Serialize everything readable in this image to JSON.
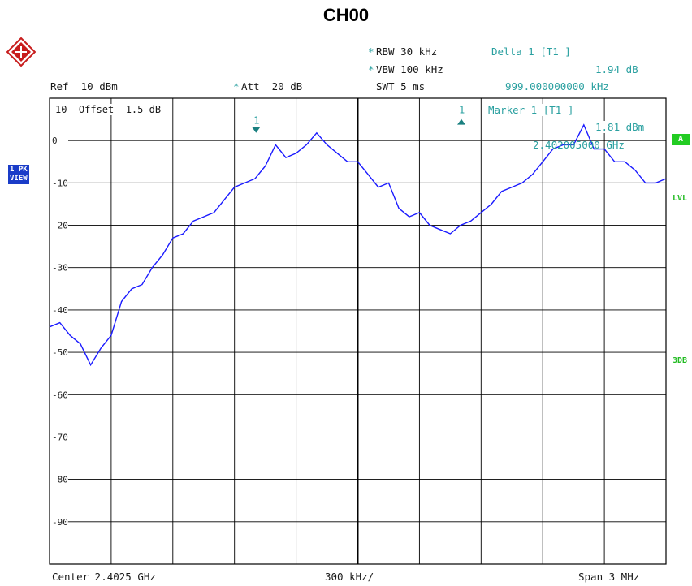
{
  "title": "CH00",
  "header": {
    "rbw": "RBW 30 kHz",
    "vbw": "VBW 100 kHz",
    "swt": "SWT 5 ms",
    "ref": "Ref  10 dBm",
    "att": "Att  20 dB",
    "rbw_star": "*",
    "vbw_star": "*",
    "att_star": "*",
    "delta_label": "Delta 1 [T1 ]",
    "delta_value": "1.94 dB",
    "delta_freq": "999.000000000 kHz",
    "marker_label": "Marker 1 [T1 ]",
    "marker_value": "1.81 dBm",
    "marker_freq": "2.402005000 GHz"
  },
  "offset_label": "10  Offset  1.5 dB",
  "side_tag_line1": "1 PK",
  "side_tag_line2": "VIEW",
  "trace_badge": "A",
  "right_labels": {
    "lvl": "LVL",
    "three_db": "3DB"
  },
  "footer": {
    "center": "Center 2.4025 GHz",
    "per_div": "300 kHz/",
    "span": "Span 3 MHz"
  },
  "colors": {
    "trace": "#1a1aff",
    "marker": "#1a8080",
    "grid": "#000000"
  },
  "chart_data": {
    "type": "line",
    "title": "CH00",
    "xlabel": "",
    "ylabel": "",
    "x_unit": "GHz",
    "y_unit": "dBm",
    "xlim": [
      2.401,
      2.404
    ],
    "ylim": [
      -100,
      10
    ],
    "y_ticks": [
      0,
      -10,
      -20,
      -30,
      -40,
      -50,
      -60,
      -70,
      -80,
      -90
    ],
    "grid": true,
    "series": [
      {
        "x": [
          2.401,
          2.40105,
          2.4011,
          2.40115,
          2.4012,
          2.40125,
          2.4013,
          2.40135,
          2.4014,
          2.40145,
          2.4015,
          2.40155,
          2.4016,
          2.40165,
          2.4017,
          2.40175,
          2.4018,
          2.40185,
          2.4019,
          2.40195,
          2.402,
          2.40205,
          2.4021,
          2.40215,
          2.4022,
          2.40225,
          2.4023,
          2.40235,
          2.4024,
          2.40245,
          2.4025,
          2.40255,
          2.4026,
          2.40265,
          2.4027,
          2.40275,
          2.4028,
          2.40285,
          2.4029,
          2.40295,
          2.403,
          2.40305,
          2.4031,
          2.40315,
          2.4032,
          2.40325,
          2.4033,
          2.40335,
          2.4034,
          2.40345,
          2.4035,
          2.40355,
          2.4036,
          2.40365,
          2.4037,
          2.40375,
          2.4038,
          2.40385,
          2.4039,
          2.40395,
          2.404
        ],
        "y": [
          -44,
          -43,
          -46,
          -48,
          -53,
          -49,
          -46,
          -38,
          -35,
          -34,
          -30,
          -27,
          -23,
          -22,
          -19,
          -18,
          -17,
          -14,
          -11,
          -10,
          -9,
          -6,
          -1,
          -4,
          -3,
          -1,
          1.8,
          -1,
          -3,
          -5,
          -5,
          -8,
          -11,
          -10,
          -16,
          -18,
          -17,
          -20,
          -21,
          -22,
          -20,
          -19,
          -17,
          -15,
          -12,
          -11,
          -10,
          -8,
          -5,
          -2,
          -1,
          -1,
          3.7,
          -2,
          -2,
          -5,
          -5,
          -7,
          -10,
          -10,
          -9
        ]
      }
    ],
    "markers": [
      {
        "label": "1",
        "x": 2.402005,
        "y": 1.81
      },
      {
        "label": "1",
        "x": 2.403004,
        "y": 3.75
      }
    ]
  }
}
